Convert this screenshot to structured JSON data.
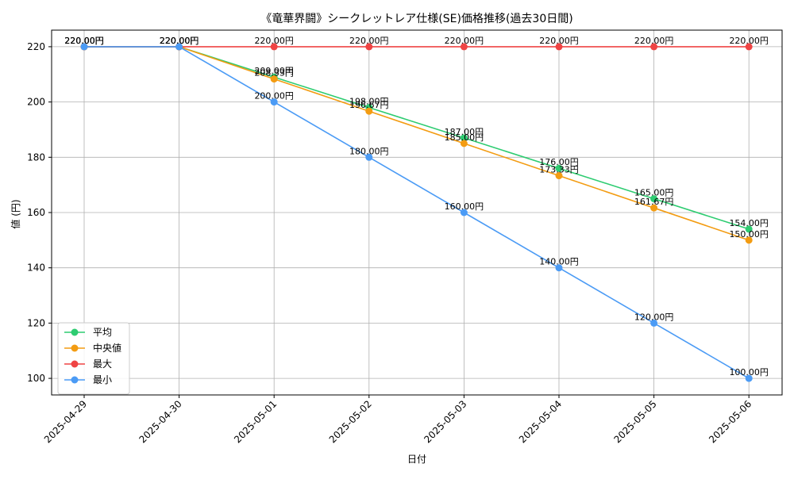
{
  "chart_data": {
    "type": "line",
    "title": "《竜華界闘》シークレットレア仕様(SE)価格推移(過去30日間)",
    "xlabel": "日付",
    "ylabel": "値 (円)",
    "categories": [
      "2025-04-29",
      "2025-04-30",
      "2025-05-01",
      "2025-05-02",
      "2025-05-03",
      "2025-05-04",
      "2025-05-05",
      "2025-05-06"
    ],
    "ylim": [
      94,
      226
    ],
    "yticks": [
      100,
      120,
      140,
      160,
      180,
      200,
      220
    ],
    "grid": true,
    "legend_position": "bottom-left",
    "value_suffix": "円",
    "series": [
      {
        "name": "平均",
        "color": "#2ecc71",
        "values": [
          220.0,
          220.0,
          209.0,
          198.0,
          187.0,
          176.0,
          165.0,
          154.0
        ]
      },
      {
        "name": "中央値",
        "color": "#f39c12",
        "values": [
          220.0,
          220.0,
          208.33,
          196.67,
          185.0,
          173.33,
          161.67,
          150.0
        ]
      },
      {
        "name": "最大",
        "color": "#ef4444",
        "values": [
          220.0,
          220.0,
          220.0,
          220.0,
          220.0,
          220.0,
          220.0,
          220.0
        ]
      },
      {
        "name": "最小",
        "color": "#4b9bf5",
        "values": [
          220.0,
          220.0,
          200.0,
          180.0,
          160.0,
          140.0,
          120.0,
          100.0
        ]
      }
    ]
  }
}
